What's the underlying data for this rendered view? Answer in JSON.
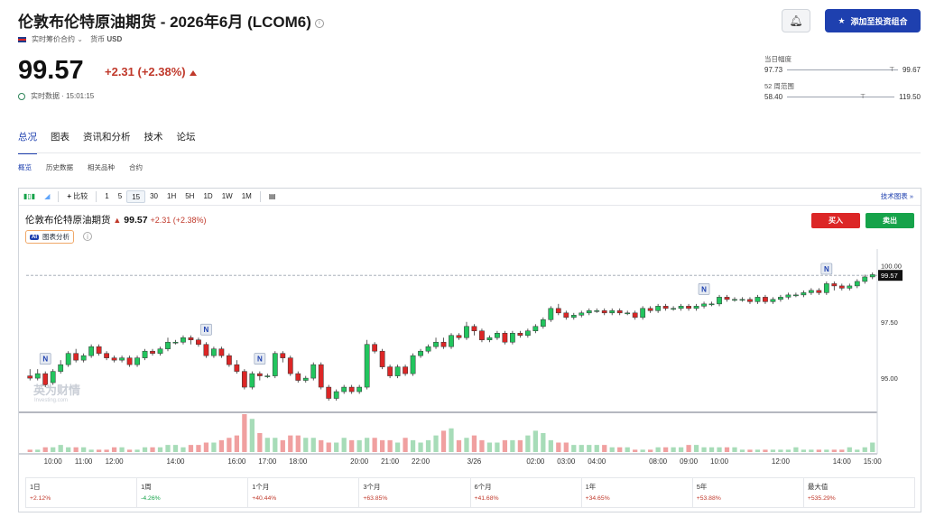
{
  "header": {
    "title": "伦敦布伦特原油期货 - 2026年6月 (LCOM6)",
    "contract_label": "实时筹价合约",
    "currency_label": "货币",
    "currency": "USD",
    "price": "99.57",
    "change": "+2.31 (+2.38%)",
    "realtime": "实时数据 · 15:01:15",
    "add_portfolio": "添加至投资组合"
  },
  "ranges": {
    "day_label": "当日幅度",
    "day_low": "97.73",
    "day_high": "99.67",
    "week52_label": "52 周范围",
    "week52_low": "58.40",
    "week52_high": "119.50"
  },
  "tabs": [
    "总况",
    "图表",
    "资讯和分析",
    "技术",
    "论坛"
  ],
  "subtabs": [
    "概览",
    "历史数据",
    "相关品种",
    "合约"
  ],
  "toolbar": {
    "compare": "比较",
    "intervals": [
      "1",
      "5",
      "15",
      "30",
      "1H",
      "5H",
      "1D",
      "1W",
      "1M"
    ],
    "selected": "15",
    "tech_chart": "技术图表 »"
  },
  "chart_header": {
    "name": "伦敦布伦特原油期货",
    "price": "99.57",
    "change": "+2.31 (+2.38%)",
    "ai_badge": "AI",
    "ai_label": "图表分析",
    "buy": "买入",
    "sell": "卖出",
    "watermark": "英为财情",
    "watermark_sub": "Investing.com"
  },
  "chart_data": {
    "type": "candlestick",
    "ylim": [
      93.6,
      100.5
    ],
    "y_ticks": [
      "100.00",
      "97.50",
      "95.00"
    ],
    "y_tick_values": [
      100.0,
      97.5,
      95.0
    ],
    "last_price": "99.57",
    "x_labels": [
      "10:00",
      "11:00",
      "12:00",
      "14:00",
      "16:00",
      "17:00",
      "18:00",
      "20:00",
      "21:00",
      "22:00",
      "3/26",
      "02:00",
      "03:00",
      "04:00",
      "08:00",
      "09:00",
      "10:00",
      "12:00",
      "14:00",
      "15:00"
    ],
    "x_label_index": [
      3,
      7,
      11,
      19,
      27,
      31,
      35,
      43,
      47,
      51,
      58,
      66,
      70,
      74,
      82,
      86,
      90,
      98,
      106,
      110
    ],
    "news_marker_label": "N",
    "news_marker_index": [
      2,
      23,
      30,
      88,
      104
    ],
    "candles": [
      [
        95.1,
        95.0,
        95.4,
        94.9
      ],
      [
        95.0,
        95.2,
        95.4,
        94.9
      ],
      [
        95.2,
        94.7,
        95.3,
        94.6
      ],
      [
        94.8,
        95.3,
        95.4,
        94.7
      ],
      [
        95.3,
        95.6,
        95.8,
        95.2
      ],
      [
        95.6,
        96.1,
        96.2,
        95.5
      ],
      [
        96.1,
        95.8,
        96.3,
        95.7
      ],
      [
        95.8,
        96.0,
        96.1,
        95.7
      ],
      [
        96.0,
        96.4,
        96.5,
        95.9
      ],
      [
        96.4,
        96.1,
        96.5,
        96.0
      ],
      [
        96.1,
        95.9,
        96.2,
        95.8
      ],
      [
        95.9,
        95.8,
        96.0,
        95.7
      ],
      [
        95.8,
        95.9,
        96.0,
        95.7
      ],
      [
        95.9,
        95.6,
        96.0,
        95.5
      ],
      [
        95.6,
        95.9,
        96.0,
        95.5
      ],
      [
        95.9,
        96.2,
        96.3,
        95.8
      ],
      [
        96.2,
        96.1,
        96.3,
        96.0
      ],
      [
        96.1,
        96.3,
        96.4,
        96.0
      ],
      [
        96.3,
        96.6,
        96.8,
        96.2
      ],
      [
        96.6,
        96.6,
        96.7,
        96.5
      ],
      [
        96.6,
        96.8,
        96.9,
        96.5
      ],
      [
        96.8,
        96.7,
        96.9,
        96.5
      ],
      [
        96.7,
        96.5,
        96.8,
        96.4
      ],
      [
        96.5,
        96.0,
        96.6,
        95.9
      ],
      [
        96.0,
        96.3,
        96.4,
        95.9
      ],
      [
        96.3,
        96.0,
        96.4,
        95.9
      ],
      [
        96.0,
        95.6,
        96.1,
        95.5
      ],
      [
        95.6,
        95.3,
        95.8,
        95.2
      ],
      [
        95.3,
        94.6,
        95.4,
        94.5
      ],
      [
        94.6,
        95.2,
        95.3,
        94.5
      ],
      [
        95.2,
        95.1,
        95.3,
        94.9
      ],
      [
        95.1,
        95.1,
        95.2,
        95.0
      ],
      [
        95.1,
        96.1,
        96.2,
        95.0
      ],
      [
        96.1,
        95.9,
        96.2,
        95.7
      ],
      [
        95.9,
        95.2,
        96.0,
        95.1
      ],
      [
        95.2,
        94.9,
        95.3,
        94.8
      ],
      [
        94.9,
        95.0,
        95.1,
        94.8
      ],
      [
        95.0,
        95.6,
        95.7,
        94.9
      ],
      [
        95.6,
        94.6,
        95.7,
        94.5
      ],
      [
        94.6,
        94.1,
        94.7,
        94.0
      ],
      [
        94.1,
        94.4,
        94.5,
        94.0
      ],
      [
        94.4,
        94.6,
        94.7,
        94.3
      ],
      [
        94.6,
        94.4,
        94.7,
        94.3
      ],
      [
        94.4,
        94.6,
        94.7,
        94.3
      ],
      [
        94.6,
        96.5,
        96.7,
        94.5
      ],
      [
        96.5,
        96.2,
        96.6,
        96.1
      ],
      [
        96.2,
        95.5,
        96.3,
        95.4
      ],
      [
        95.5,
        95.1,
        95.6,
        95.0
      ],
      [
        95.1,
        95.5,
        95.6,
        95.0
      ],
      [
        95.5,
        95.2,
        95.6,
        95.1
      ],
      [
        95.2,
        96.0,
        96.1,
        95.1
      ],
      [
        96.0,
        96.2,
        96.3,
        95.9
      ],
      [
        96.2,
        96.4,
        96.5,
        96.1
      ],
      [
        96.4,
        96.6,
        96.8,
        96.3
      ],
      [
        96.6,
        96.4,
        96.8,
        96.3
      ],
      [
        96.4,
        96.9,
        97.0,
        96.3
      ],
      [
        96.9,
        96.8,
        97.0,
        96.7
      ],
      [
        96.8,
        97.3,
        97.5,
        96.7
      ],
      [
        97.3,
        97.1,
        97.4,
        96.9
      ],
      [
        97.1,
        96.7,
        97.2,
        96.6
      ],
      [
        96.7,
        96.8,
        96.9,
        96.6
      ],
      [
        96.8,
        97.0,
        97.1,
        96.7
      ],
      [
        97.0,
        96.6,
        97.1,
        96.5
      ],
      [
        96.6,
        97.0,
        97.1,
        96.5
      ],
      [
        97.0,
        96.9,
        97.1,
        96.8
      ],
      [
        96.9,
        97.1,
        97.2,
        96.8
      ],
      [
        97.1,
        97.3,
        97.4,
        97.0
      ],
      [
        97.3,
        97.6,
        97.7,
        97.2
      ],
      [
        97.6,
        98.1,
        98.2,
        97.5
      ],
      [
        98.1,
        97.9,
        98.3,
        97.8
      ],
      [
        97.9,
        97.7,
        98.0,
        97.6
      ],
      [
        97.7,
        97.8,
        97.9,
        97.6
      ],
      [
        97.8,
        97.9,
        98.0,
        97.7
      ],
      [
        97.9,
        98.0,
        98.1,
        97.8
      ],
      [
        98.0,
        98.0,
        98.1,
        97.9
      ],
      [
        98.0,
        97.9,
        98.1,
        97.8
      ],
      [
        97.9,
        98.0,
        98.1,
        97.8
      ],
      [
        98.0,
        97.9,
        98.1,
        97.8
      ],
      [
        97.9,
        97.9,
        98.0,
        97.8
      ],
      [
        97.9,
        97.7,
        98.0,
        97.6
      ],
      [
        97.7,
        98.1,
        98.2,
        97.6
      ],
      [
        98.1,
        98.0,
        98.2,
        97.9
      ],
      [
        98.0,
        98.2,
        98.3,
        97.9
      ],
      [
        98.2,
        98.1,
        98.3,
        98.0
      ],
      [
        98.1,
        98.1,
        98.2,
        98.0
      ],
      [
        98.1,
        98.2,
        98.3,
        98.0
      ],
      [
        98.2,
        98.1,
        98.3,
        98.0
      ],
      [
        98.1,
        98.2,
        98.3,
        98.0
      ],
      [
        98.2,
        98.3,
        98.4,
        98.1
      ],
      [
        98.3,
        98.3,
        98.4,
        98.2
      ],
      [
        98.3,
        98.6,
        98.7,
        98.2
      ],
      [
        98.6,
        98.5,
        98.7,
        98.4
      ],
      [
        98.5,
        98.5,
        98.6,
        98.4
      ],
      [
        98.5,
        98.5,
        98.6,
        98.4
      ],
      [
        98.5,
        98.4,
        98.6,
        98.3
      ],
      [
        98.4,
        98.6,
        98.7,
        98.3
      ],
      [
        98.6,
        98.4,
        98.7,
        98.3
      ],
      [
        98.4,
        98.5,
        98.6,
        98.3
      ],
      [
        98.5,
        98.6,
        98.7,
        98.4
      ],
      [
        98.6,
        98.7,
        98.8,
        98.5
      ],
      [
        98.7,
        98.7,
        98.8,
        98.6
      ],
      [
        98.7,
        98.8,
        98.9,
        98.6
      ],
      [
        98.8,
        98.9,
        99.0,
        98.7
      ],
      [
        98.9,
        98.8,
        99.0,
        98.7
      ],
      [
        98.8,
        99.2,
        99.3,
        98.7
      ],
      [
        99.2,
        99.1,
        99.3,
        98.9
      ],
      [
        99.1,
        99.0,
        99.2,
        98.9
      ],
      [
        99.0,
        99.1,
        99.2,
        98.9
      ],
      [
        99.1,
        99.3,
        99.4,
        99.0
      ],
      [
        99.3,
        99.5,
        99.6,
        99.2
      ],
      [
        99.5,
        99.6,
        99.7,
        99.4
      ]
    ],
    "volume": [
      1,
      1,
      2,
      2,
      3,
      2,
      2,
      2,
      1,
      1,
      1,
      2,
      2,
      1,
      1,
      2,
      2,
      2,
      3,
      3,
      2,
      3,
      3,
      4,
      4,
      5,
      6,
      7,
      16,
      14,
      8,
      6,
      6,
      5,
      7,
      7,
      6,
      6,
      5,
      4,
      4,
      6,
      5,
      5,
      6,
      6,
      5,
      5,
      4,
      6,
      5,
      4,
      5,
      7,
      9,
      10,
      5,
      6,
      7,
      5,
      4,
      4,
      5,
      5,
      5,
      7,
      9,
      8,
      5,
      4,
      4,
      3,
      3,
      3,
      3,
      3,
      2,
      2,
      2,
      1,
      1,
      1,
      2,
      2,
      2,
      2,
      3,
      3,
      2,
      2,
      2,
      2,
      2,
      1,
      1,
      1,
      1,
      1,
      1,
      1,
      2,
      1,
      1,
      1,
      1,
      1,
      1,
      2,
      1,
      2,
      4
    ]
  },
  "performance": [
    {
      "label": "1日",
      "value": "+2.12%"
    },
    {
      "label": "1周",
      "value": "-4.26%"
    },
    {
      "label": "1个月",
      "value": "+40.44%"
    },
    {
      "label": "3个月",
      "value": "+63.85%"
    },
    {
      "label": "6个月",
      "value": "+41.68%"
    },
    {
      "label": "1年",
      "value": "+34.65%"
    },
    {
      "label": "5年",
      "value": "+53.88%"
    },
    {
      "label": "最大值",
      "value": "+535.29%"
    }
  ],
  "colors": {
    "up": "#22c55e",
    "down": "#dc2626",
    "accent": "#1e40af"
  }
}
